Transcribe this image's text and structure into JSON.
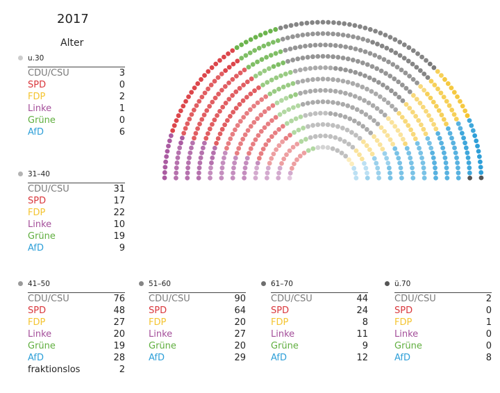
{
  "title": "2017",
  "subtitle": "Alter",
  "colors": {
    "CDU/CSU": "#7a7a7a",
    "SPD": "#d9363b",
    "FDP": "#f4c430",
    "Linke": "#a34d99",
    "Grüne": "#5fae3e",
    "AfD": "#2e9fd8",
    "fraktionslos": "#222222"
  },
  "chart_data": {
    "type": "parliament",
    "parties": [
      "Linke",
      "SPD",
      "Grüne",
      "CDU/CSU",
      "FDP",
      "AfD",
      "fraktionslos"
    ],
    "age_groups": [
      {
        "label": "u.30",
        "dot_color": "#cccccc",
        "values": [
          {
            "party": "CDU/CSU",
            "value": 3
          },
          {
            "party": "SPD",
            "value": 0
          },
          {
            "party": "FDP",
            "value": 2
          },
          {
            "party": "Linke",
            "value": 1
          },
          {
            "party": "Grüne",
            "value": 0
          },
          {
            "party": "AfD",
            "value": 6
          }
        ]
      },
      {
        "label": "31–40",
        "dot_color": "#b3b3b3",
        "values": [
          {
            "party": "CDU/CSU",
            "value": 31
          },
          {
            "party": "SPD",
            "value": 17
          },
          {
            "party": "FDP",
            "value": 22
          },
          {
            "party": "Linke",
            "value": 10
          },
          {
            "party": "Grüne",
            "value": 19
          },
          {
            "party": "AfD",
            "value": 9
          }
        ]
      },
      {
        "label": "41–50",
        "dot_color": "#9a9a9a",
        "values": [
          {
            "party": "CDU/CSU",
            "value": 76
          },
          {
            "party": "SPD",
            "value": 48
          },
          {
            "party": "FDP",
            "value": 27
          },
          {
            "party": "Linke",
            "value": 20
          },
          {
            "party": "Grüne",
            "value": 19
          },
          {
            "party": "AfD",
            "value": 28
          },
          {
            "party": "fraktionslos",
            "value": 2
          }
        ]
      },
      {
        "label": "51–60",
        "dot_color": "#858585",
        "values": [
          {
            "party": "CDU/CSU",
            "value": 90
          },
          {
            "party": "SPD",
            "value": 64
          },
          {
            "party": "FDP",
            "value": 20
          },
          {
            "party": "Linke",
            "value": 27
          },
          {
            "party": "Grüne",
            "value": 20
          },
          {
            "party": "AfD",
            "value": 29
          }
        ]
      },
      {
        "label": "61–70",
        "dot_color": "#6e6e6e",
        "values": [
          {
            "party": "CDU/CSU",
            "value": 44
          },
          {
            "party": "SPD",
            "value": 24
          },
          {
            "party": "FDP",
            "value": 8
          },
          {
            "party": "Linke",
            "value": 11
          },
          {
            "party": "Grüne",
            "value": 9
          },
          {
            "party": "AfD",
            "value": 12
          }
        ]
      },
      {
        "label": "ü.70",
        "dot_color": "#555555",
        "values": [
          {
            "party": "CDU/CSU",
            "value": 2
          },
          {
            "party": "SPD",
            "value": 0
          },
          {
            "party": "FDP",
            "value": 1
          },
          {
            "party": "Linke",
            "value": 0
          },
          {
            "party": "Grüne",
            "value": 0
          },
          {
            "party": "AfD",
            "value": 8
          }
        ]
      }
    ]
  }
}
